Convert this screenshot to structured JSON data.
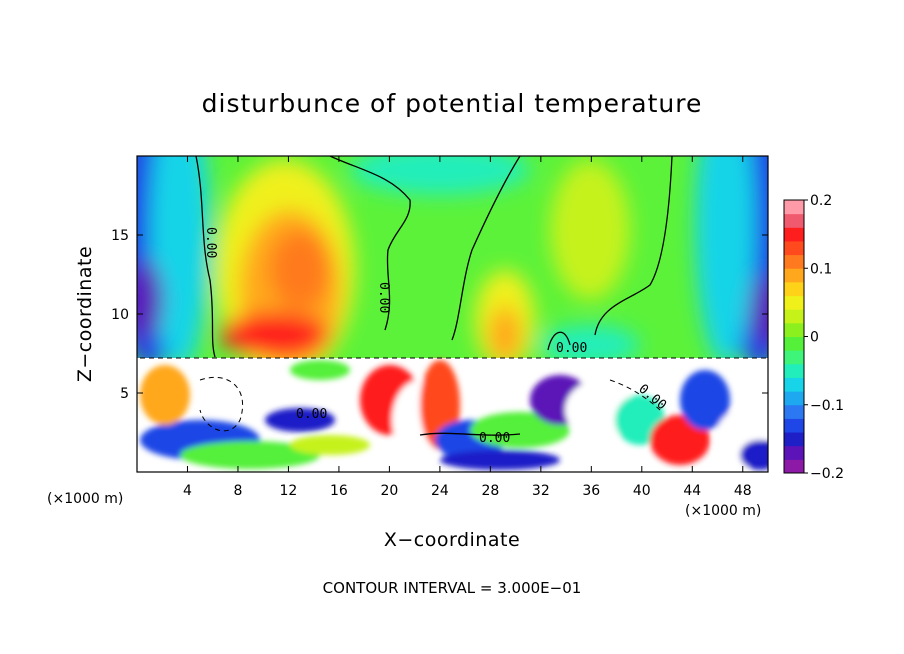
{
  "chart_data": {
    "type": "heatmap",
    "title": "disturbunce of potential temperature",
    "xlabel": "X−coordinate",
    "ylabel": "Z−coordinate",
    "x_unit_label_left": "(×1000 m)",
    "x_unit_label_right": "(×1000 m)",
    "xlim": [
      0,
      50
    ],
    "ylim": [
      0,
      20
    ],
    "x_ticks": [
      4,
      8,
      12,
      16,
      20,
      24,
      28,
      32,
      36,
      40,
      44,
      48
    ],
    "x_tick_labels": [
      "4",
      "8",
      "12",
      "16",
      "20",
      "24",
      "28",
      "32",
      "36",
      "40",
      "44",
      "48"
    ],
    "y_ticks": [
      5,
      10,
      15
    ],
    "y_tick_labels": [
      "5",
      "10",
      "15"
    ],
    "colorbar": {
      "vmin": -0.2,
      "vmax": 0.2,
      "ticks": [
        0.2,
        0.1,
        0,
        -0.1,
        -0.2
      ],
      "tick_labels": [
        "0.2",
        "0.1",
        "0",
        "−0.1",
        "−0.2"
      ],
      "colors": [
        "#8c1aa6",
        "#5c14b8",
        "#1f1fc8",
        "#1f46e6",
        "#2b78f2",
        "#1ea8f0",
        "#18d4e8",
        "#22eebb",
        "#3ef57a",
        "#54f03a",
        "#8cf01e",
        "#c6f21a",
        "#f0f01a",
        "#ffd21a",
        "#ffa81e",
        "#ff7a1e",
        "#ff4a1e",
        "#ff1e1e",
        "#f05a6e",
        "#ff9aa8"
      ]
    },
    "contour_levels": [
      "0.00",
      "0.00",
      "0.00",
      "0.00",
      "0.00",
      "0.00"
    ],
    "contour_interval_text": "CONTOUR INTERVAL = 3.000E−01",
    "grid": false,
    "legend": "right"
  }
}
